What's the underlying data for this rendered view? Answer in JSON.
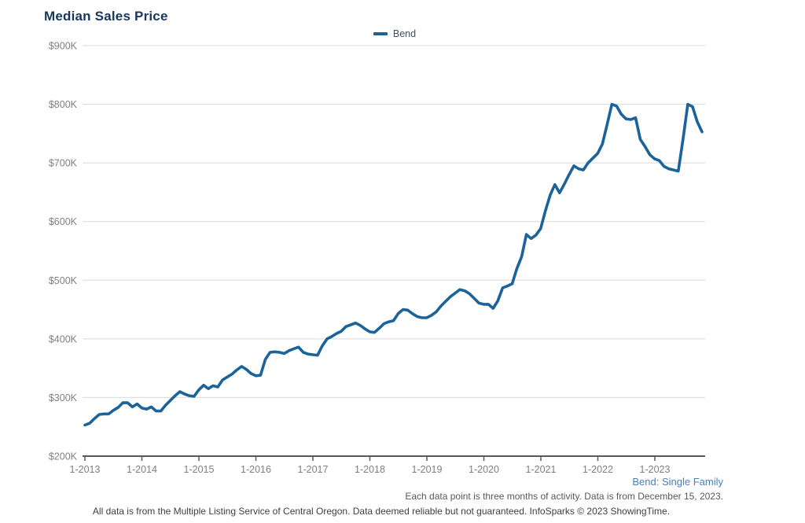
{
  "header": {
    "title": "Median Sales Price"
  },
  "legend": {
    "items": [
      {
        "label": "Bend",
        "color": "#1b6398"
      }
    ]
  },
  "footnotes": {
    "series_note": "Bend: Single Family",
    "data_note": "Each data point is three months of activity. Data is from December 15, 2023.",
    "source_note": "All data is from the Multiple Listing Service of Central Oregon. Data deemed reliable but not guaranteed. InfoSparks © 2023 ShowingTime."
  },
  "colors": {
    "line": "#1b6398",
    "title": "#17375e",
    "axis_text": "#808080",
    "axis_line": "#58595b",
    "gridline": "#d9d9d9",
    "series_note": "#4a7fba"
  },
  "chart_data": {
    "type": "line",
    "title": "Median Sales Price",
    "xlabel": "",
    "ylabel": "Median Sales Price ($)",
    "grid": "horizontal",
    "legend_position": "top-center",
    "ylim_thousands": [
      200,
      900
    ],
    "y_tick_values_thousands": [
      900,
      800,
      700,
      600,
      500,
      400,
      300,
      200
    ],
    "y_tick_labels": [
      "$900K",
      "$800K",
      "$700K",
      "$600K",
      "$500K",
      "$400K",
      "$300K",
      "$200K"
    ],
    "x_tick_labels": [
      "1-2013",
      "1-2014",
      "1-2015",
      "1-2016",
      "1-2017",
      "1-2018",
      "1-2019",
      "1-2020",
      "1-2021",
      "1-2022",
      "1-2023"
    ],
    "x_monthly_start": "2013-01",
    "x_monthly_end": "2023-11",
    "series": [
      {
        "name": "Bend",
        "color": "#1b6398",
        "values_thousands": [
          253,
          256,
          264,
          271,
          272,
          272,
          278,
          283,
          291,
          291,
          284,
          289,
          282,
          280,
          284,
          277,
          277,
          287,
          295,
          303,
          310,
          306,
          303,
          302,
          313,
          321,
          315,
          320,
          318,
          330,
          335,
          340,
          347,
          353,
          348,
          341,
          337,
          338,
          365,
          377,
          378,
          377,
          375,
          380,
          383,
          386,
          377,
          374,
          373,
          372,
          388,
          400,
          404,
          409,
          413,
          421,
          424,
          427,
          423,
          417,
          412,
          411,
          418,
          426,
          429,
          431,
          443,
          450,
          449,
          443,
          438,
          436,
          436,
          440,
          446,
          456,
          464,
          472,
          478,
          484,
          482,
          477,
          469,
          461,
          459,
          459,
          452,
          465,
          487,
          490,
          494,
          520,
          540,
          578,
          571,
          577,
          588,
          618,
          645,
          663,
          649,
          664,
          680,
          695,
          690,
          688,
          700,
          708,
          716,
          732,
          765,
          800,
          797,
          783,
          775,
          774,
          777,
          740,
          728,
          714,
          707,
          704,
          694,
          690,
          688,
          686,
          740,
          800,
          796,
          770,
          753
        ]
      }
    ]
  }
}
